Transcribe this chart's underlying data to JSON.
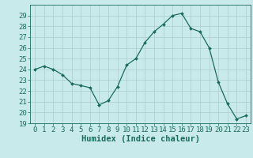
{
  "x": [
    0,
    1,
    2,
    3,
    4,
    5,
    6,
    7,
    8,
    9,
    10,
    11,
    12,
    13,
    14,
    15,
    16,
    17,
    18,
    19,
    20,
    21,
    22,
    23
  ],
  "y": [
    24.0,
    24.3,
    24.0,
    23.5,
    22.7,
    22.5,
    22.3,
    20.7,
    21.1,
    22.4,
    24.4,
    25.0,
    26.5,
    27.5,
    28.2,
    29.0,
    29.2,
    27.8,
    27.5,
    26.0,
    22.8,
    20.8,
    19.4,
    19.7
  ],
  "line_color": "#1a6b5a",
  "marker_color": "#1a6b5a",
  "bg_color": "#c8eaea",
  "grid_color": "#aacccc",
  "grid_major_color": "#88bbbb",
  "xlabel": "Humidex (Indice chaleur)",
  "ylim": [
    19,
    30
  ],
  "xlim": [
    -0.5,
    23.5
  ],
  "yticks": [
    19,
    20,
    21,
    22,
    23,
    24,
    25,
    26,
    27,
    28,
    29
  ],
  "xticks": [
    0,
    1,
    2,
    3,
    4,
    5,
    6,
    7,
    8,
    9,
    10,
    11,
    12,
    13,
    14,
    15,
    16,
    17,
    18,
    19,
    20,
    21,
    22,
    23
  ],
  "axis_fontsize": 6.5,
  "xlabel_fontsize": 7.5
}
